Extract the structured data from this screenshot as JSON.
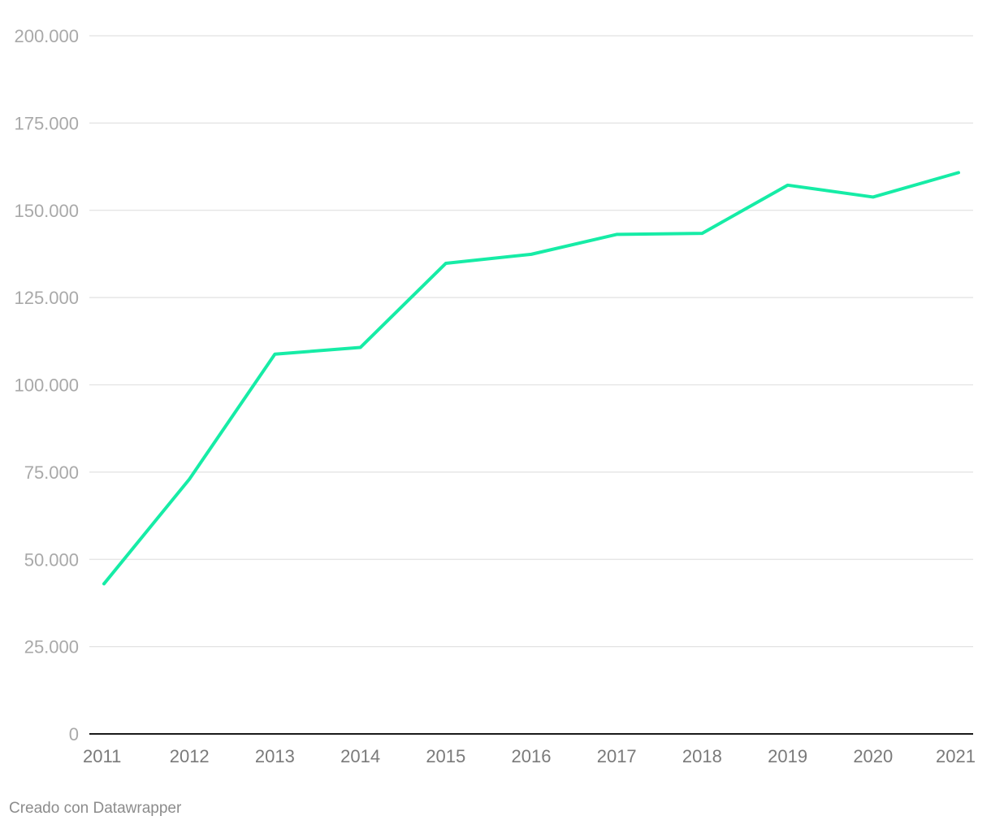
{
  "chart_data": {
    "type": "line",
    "title": "",
    "xlabel": "",
    "ylabel": "",
    "x": [
      "2011",
      "2012",
      "2013",
      "2014",
      "2015",
      "2016",
      "2017",
      "2018",
      "2019",
      "2020",
      "2021"
    ],
    "series": [
      {
        "name": "",
        "color": "#16eca6",
        "values": [
          43000,
          73000,
          108800,
          110700,
          134800,
          137400,
          143100,
          143400,
          157200,
          153800,
          160800
        ]
      }
    ],
    "y_ticks": [
      0,
      25000,
      50000,
      75000,
      100000,
      125000,
      150000,
      175000,
      200000
    ],
    "y_tick_labels": [
      "0",
      "25.000",
      "50.000",
      "75.000",
      "100.000",
      "125.000",
      "150.000",
      "175.000",
      "200.000"
    ],
    "ylim": [
      0,
      200000
    ],
    "grid": true
  },
  "footer": {
    "credit": "Creado con Datawrapper"
  },
  "colors": {
    "line": "#16eca6",
    "grid": "#e2e2e2",
    "axis": "#1a1a1a"
  }
}
